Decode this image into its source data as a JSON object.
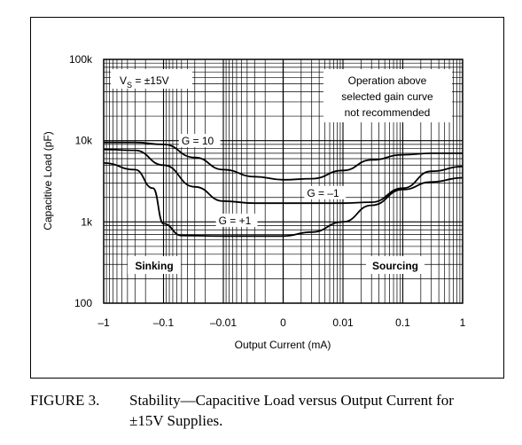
{
  "chart_data": {
    "type": "line",
    "xlabel": "Output Current (mA)",
    "ylabel": "Capacitive Load (pF)",
    "x_scale": "symmetric-log",
    "y_scale": "log",
    "x_ticks": [
      "–1",
      "–0.1",
      "–0.01",
      "0",
      "0.01",
      "0.1",
      "1"
    ],
    "x_tick_values": [
      -1,
      -0.1,
      -0.01,
      0,
      0.01,
      0.1,
      1
    ],
    "y_ticks": [
      "100",
      "1k",
      "10k",
      "100k"
    ],
    "y_tick_values": [
      100,
      1000,
      10000,
      100000
    ],
    "ylim": [
      100,
      100000
    ],
    "grid": true,
    "annotations": {
      "vs": "V",
      "vs_sub": "S",
      "vs_rest": " = ±15V",
      "note_line1": "Operation above",
      "note_line2": "selected gain curve",
      "note_line3": "not recommended",
      "sinking": "Sinking",
      "sourcing": "Sourcing"
    },
    "series": [
      {
        "name": "G = 10",
        "x": [
          -1,
          -0.3,
          -0.1,
          -0.03,
          -0.01,
          -0.003,
          0,
          0.003,
          0.01,
          0.03,
          0.1,
          0.3,
          1
        ],
        "y": [
          9500,
          9500,
          9000,
          6200,
          4400,
          3600,
          3300,
          3400,
          4300,
          5800,
          6700,
          7000,
          7000
        ]
      },
      {
        "name": "G = –1",
        "x": [
          -1,
          -0.3,
          -0.1,
          -0.03,
          -0.01,
          -0.003,
          0,
          0.003,
          0.01,
          0.03,
          0.1,
          0.3,
          1
        ],
        "y": [
          7800,
          7600,
          5000,
          2700,
          1800,
          1700,
          1700,
          1700,
          1700,
          1750,
          2600,
          4200,
          4800
        ]
      },
      {
        "name": "G = +1",
        "x": [
          -1,
          -0.3,
          -0.15,
          -0.1,
          -0.05,
          -0.01,
          -0.003,
          0,
          0.003,
          0.01,
          0.03,
          0.1,
          0.3,
          1
        ],
        "y": [
          5300,
          4400,
          2600,
          950,
          680,
          670,
          670,
          670,
          750,
          1000,
          1600,
          2500,
          3100,
          3500
        ]
      }
    ]
  },
  "caption": {
    "figure": "FIGURE 3.",
    "text": "Stability—Capacitive Load versus Output Current for ±15V Supplies."
  }
}
